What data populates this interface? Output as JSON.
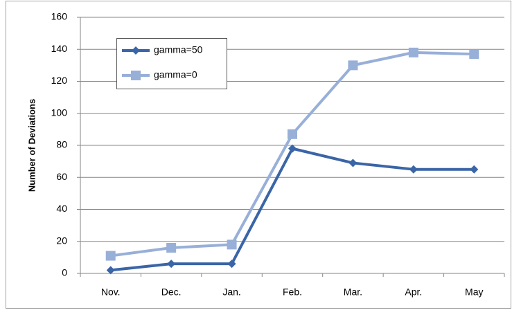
{
  "chart_data": {
    "type": "line",
    "ylabel": "Number of Deviations",
    "categories": [
      "Nov.",
      "Dec.",
      "Jan.",
      "Feb.",
      "Mar.",
      "Apr.",
      "May"
    ],
    "series": [
      {
        "name": "gamma=50",
        "color": "#3a65a6",
        "marker": "diamond",
        "values": [
          2,
          6,
          6,
          78,
          69,
          65,
          65
        ]
      },
      {
        "name": "gamma=0",
        "color": "#98afd8",
        "marker": "square",
        "values": [
          11,
          16,
          18,
          87,
          130,
          138,
          137
        ]
      }
    ],
    "ylim": [
      0,
      160
    ],
    "yticks": [
      0,
      20,
      40,
      60,
      80,
      100,
      120,
      140,
      160
    ],
    "grid": true,
    "legend": "upper left"
  }
}
